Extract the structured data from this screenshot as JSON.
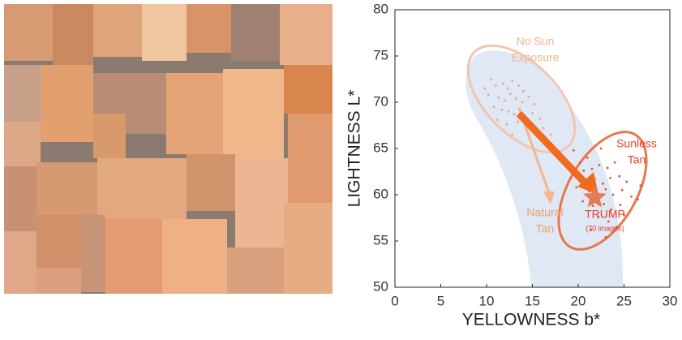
{
  "chart_data": {
    "type": "scatter",
    "xlabel": "YELLOWNESS b*",
    "ylabel": "LIGHTNESS L*",
    "xlim": [
      0,
      30
    ],
    "xticks": [
      0,
      5,
      10,
      15,
      20,
      25,
      30
    ],
    "ylim": [
      50,
      80
    ],
    "yticks": [
      50,
      55,
      60,
      65,
      70,
      75,
      80
    ],
    "annotations": [
      "No Sun",
      "Exposure",
      "Sunless",
      "Tan",
      "Natural",
      "Tan",
      "TRUMP",
      "(70 images)"
    ],
    "series": [
      {
        "color": "#e9a58e",
        "x": [
          10.5,
          11,
          11.8,
          12.3,
          12.8,
          13.5,
          14,
          10.2,
          11.3,
          12,
          12.6,
          13.2,
          13.9,
          14.6,
          15.2,
          10.8,
          11.7,
          12.4,
          13,
          13.6,
          14.2,
          15,
          15.8,
          11.2,
          12.2,
          13.4,
          14.5,
          16.2,
          12.8,
          15.5,
          9.8,
          17
        ],
        "values": [
          72.5,
          71.8,
          72,
          71.5,
          72.3,
          71.8,
          71.2,
          70.8,
          70.5,
          70.2,
          70.9,
          70.4,
          70,
          70.6,
          69.8,
          69.5,
          69.2,
          69,
          68.7,
          69.3,
          68.5,
          68.8,
          68.2,
          68.1,
          67.6,
          67.9,
          67.4,
          67.2,
          66.5,
          66.8,
          71.5,
          66.5
        ]
      },
      {
        "color": "#e2533c",
        "x": [
          19.5,
          20.2,
          21,
          22.5,
          20.6,
          21.5,
          22.3,
          23.2,
          24,
          20.8,
          21.8,
          22.7,
          23.5,
          24.5,
          25.3,
          21.2,
          22.1,
          23,
          23.8,
          24.8,
          25.8,
          20.5,
          21.6,
          22.8,
          23.6,
          24.6,
          26.5,
          22.2,
          23.3,
          24.2,
          25,
          21.4,
          23,
          26.8,
          19.8
        ],
        "values": [
          64.8,
          63.5,
          64,
          65,
          62.6,
          62.8,
          63.2,
          62.9,
          63.5,
          61.5,
          61.7,
          61.2,
          61.8,
          62,
          61.4,
          60.4,
          60.2,
          60.6,
          60,
          60.5,
          59.8,
          59.3,
          58.8,
          59,
          58.4,
          58.9,
          59.5,
          57.6,
          57.1,
          56.5,
          57.8,
          56.2,
          55.4,
          61,
          60.8
        ]
      },
      {
        "color": "#e87a55",
        "marker": "star",
        "x": [
          21.8
        ],
        "values": [
          59.7
        ]
      }
    ]
  }
}
